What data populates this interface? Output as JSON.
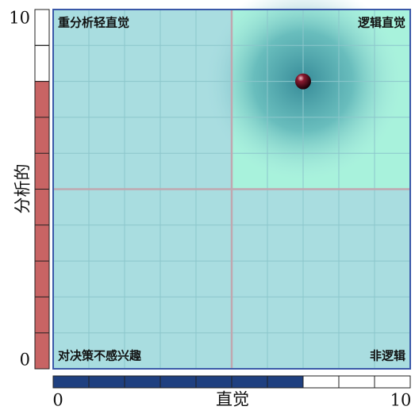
{
  "chart_data": {
    "type": "scatter",
    "x_label": "直觉",
    "y_label": "分析的",
    "quadrant_labels": {
      "top_left": "重分析轻直觉",
      "top_right": "逻辑直觉",
      "bottom_left": "对决策不感兴趣",
      "bottom_right": "非逻辑"
    },
    "x": [
      7
    ],
    "values": [
      8
    ],
    "xlim": [
      0,
      10
    ],
    "ylim": [
      0,
      10
    ],
    "xticks": [
      0,
      10
    ],
    "yticks": [
      0,
      10
    ],
    "grid": true,
    "color": "#5a0a1a",
    "x_bar_color": "#1f4080",
    "y_bar_color": "#c86464"
  }
}
